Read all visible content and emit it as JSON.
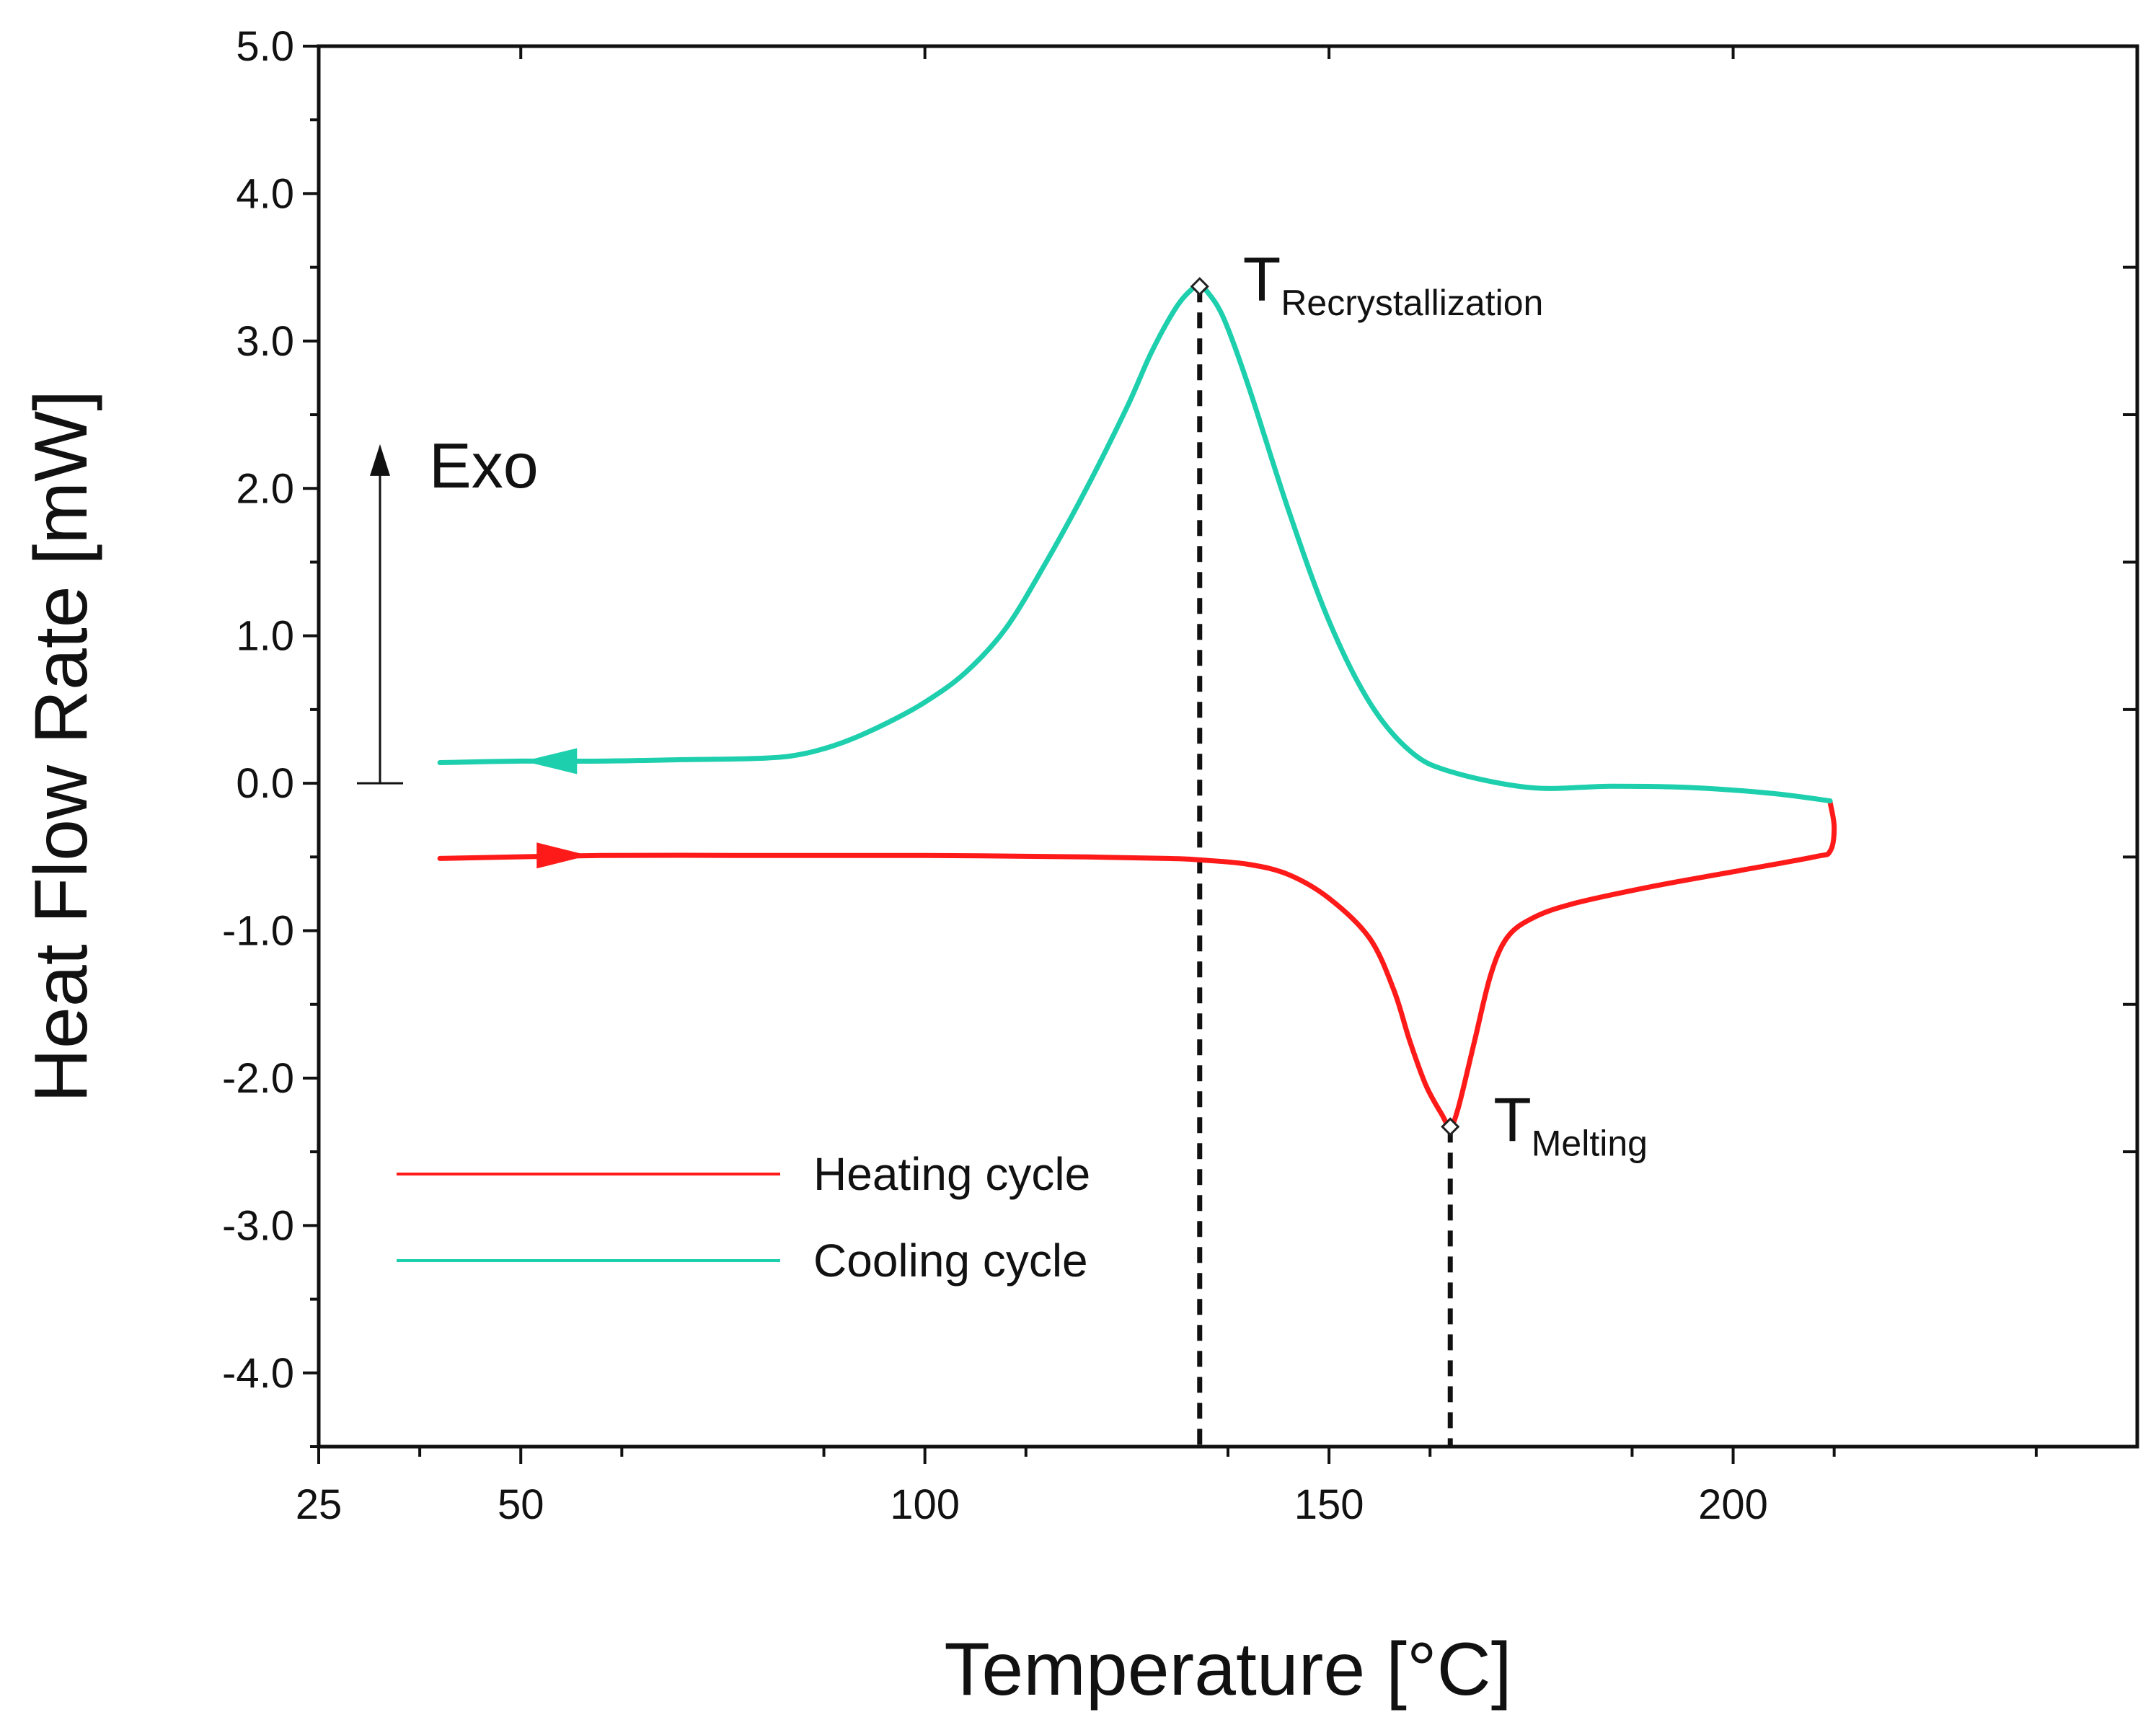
{
  "chart_data": {
    "type": "line",
    "title": "",
    "xlabel": "Temperature [°C]",
    "ylabel": "Heat Flow Rate [mW]",
    "xlim": [
      25,
      250
    ],
    "ylim": [
      -4.5,
      5.0
    ],
    "xticks": [
      25,
      50,
      100,
      150,
      200
    ],
    "xtick_labels": [
      "25",
      "50",
      "100",
      "150",
      "200"
    ],
    "yticks": [
      5.0,
      4.0,
      3.0,
      2.0,
      1.0,
      0.0,
      -1.0,
      -2.0,
      -3.0,
      -4.0
    ],
    "ytick_labels": [
      "5.0",
      "4.0",
      "3.0",
      "2.0",
      "1.0",
      "0.0",
      "-1.0",
      "-2.0",
      "-3.0",
      "-4.0"
    ],
    "grid": false,
    "legend_position": "bottom-left",
    "series": [
      {
        "name": "Heating cycle",
        "color": "#ff1a1a",
        "direction": "increasing temperature",
        "x": [
          40,
          60,
          80,
          100,
          120,
          130,
          134,
          140,
          145,
          150,
          155,
          158,
          160,
          162,
          164,
          165,
          166,
          168,
          170,
          172,
          175,
          180,
          190,
          200,
          210,
          212,
          212.5,
          212
        ],
        "y": [
          -0.51,
          -0.49,
          -0.49,
          -0.49,
          -0.5,
          -0.51,
          -0.52,
          -0.55,
          -0.62,
          -0.78,
          -1.05,
          -1.4,
          -1.75,
          -2.05,
          -2.25,
          -2.33,
          -2.2,
          -1.75,
          -1.3,
          -1.05,
          -0.92,
          -0.82,
          -0.7,
          -0.6,
          -0.5,
          -0.46,
          -0.3,
          -0.13
        ]
      },
      {
        "name": "Cooling cycle",
        "color": "#1ecfae",
        "direction": "decreasing temperature",
        "x": [
          212,
          205,
          195,
          185,
          175,
          165,
          160,
          155,
          150,
          145,
          140,
          137,
          135,
          134,
          133,
          131,
          128,
          125,
          120,
          115,
          110,
          105,
          100,
          95,
          90,
          85,
          80,
          70,
          60,
          50,
          40
        ],
        "y": [
          -0.12,
          -0.07,
          -0.03,
          -0.02,
          -0.03,
          0.08,
          0.22,
          0.55,
          1.1,
          1.85,
          2.7,
          3.15,
          3.33,
          3.37,
          3.35,
          3.22,
          2.92,
          2.55,
          2.0,
          1.5,
          1.05,
          0.75,
          0.55,
          0.4,
          0.28,
          0.2,
          0.17,
          0.16,
          0.15,
          0.15,
          0.14
        ]
      }
    ],
    "markers": [
      {
        "label": "T",
        "subscript": "Recrystallization",
        "x": 134,
        "y": 3.37
      },
      {
        "label": "T",
        "subscript": "Melting",
        "x": 165,
        "y": -2.33
      }
    ],
    "exo_label": "Exo",
    "exo_arrow_from": 0.0,
    "exo_arrow_to": 2.3
  }
}
